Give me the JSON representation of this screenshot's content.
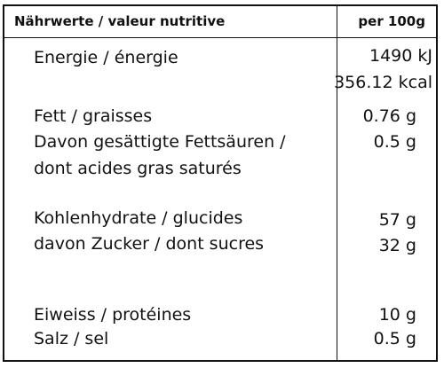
{
  "header": {
    "label": "Nährwerte / valeur nutritive",
    "per": "per 100g"
  },
  "rows": [
    {
      "label": "Energie / énergie",
      "value": "1490 kJ"
    },
    {
      "label": "",
      "value": "356.12 kcal"
    },
    {
      "label": "Fett / graisses",
      "value": "0.76 g"
    },
    {
      "label": "Davon gesättigte Fettsäuren /",
      "value": "0.5 g"
    },
    {
      "label": "dont acides gras saturés",
      "value": ""
    },
    {
      "label": "Kohlenhydrate / glucides",
      "value": "57 g"
    },
    {
      "label": "davon Zucker / dont sucres",
      "value": "32 g"
    },
    {
      "label": "Eiweiss / protéines",
      "value": "10 g"
    },
    {
      "label": "Salz / sel",
      "value": "0.5 g"
    }
  ]
}
